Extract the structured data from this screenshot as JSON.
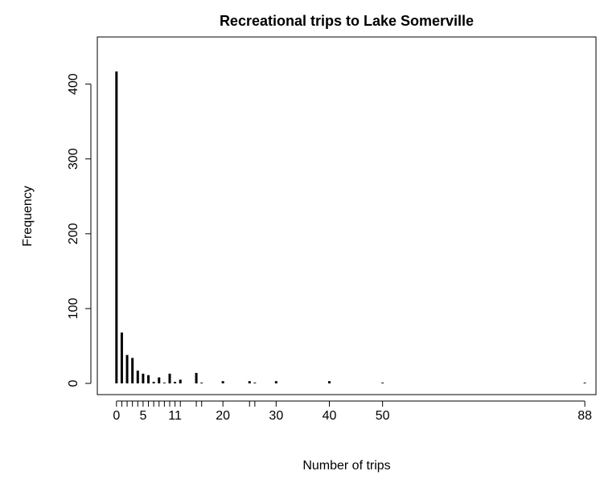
{
  "chart_data": {
    "type": "needle",
    "title": "Recreational trips to Lake Somerville",
    "xlabel": "Number of trips",
    "ylabel": "Frequency",
    "x": [
      0,
      1,
      2,
      3,
      4,
      5,
      6,
      7,
      8,
      9,
      10,
      11,
      12,
      15,
      16,
      20,
      25,
      26,
      30,
      40,
      50,
      88
    ],
    "values": [
      417,
      68,
      38,
      34,
      17,
      13,
      11,
      2,
      8,
      1,
      13,
      2,
      5,
      14,
      1,
      3,
      3,
      1,
      3,
      3,
      1,
      1
    ],
    "color": "#000000",
    "xlim": [
      -3.6,
      90.1
    ],
    "xticks": [
      0,
      5,
      11,
      20,
      30,
      40,
      50,
      88
    ],
    "ylim": [
      -15,
      463
    ],
    "yticks": [
      0,
      100,
      200,
      300,
      400
    ]
  }
}
